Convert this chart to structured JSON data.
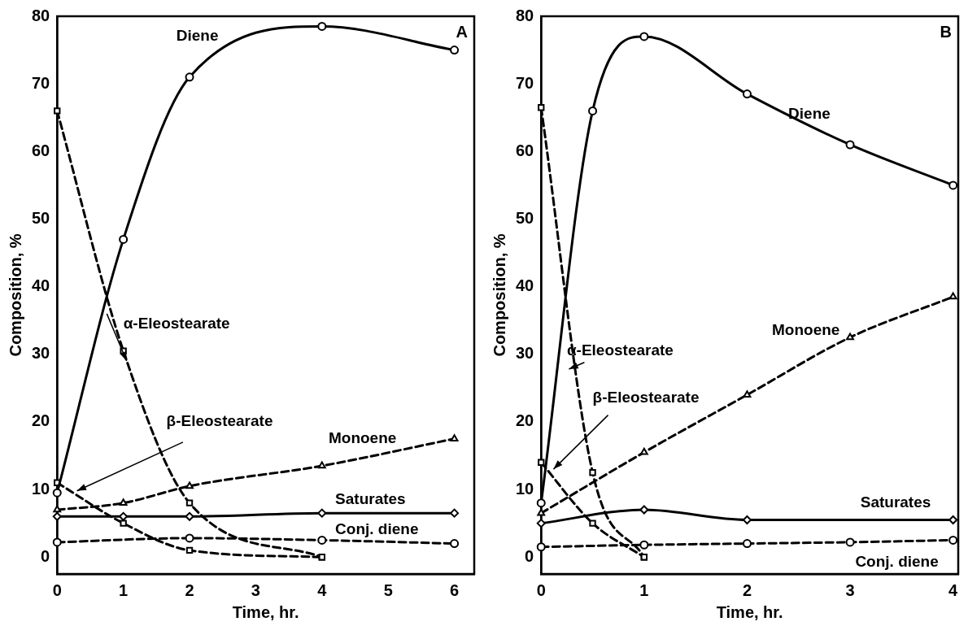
{
  "chart_data": [
    {
      "type": "line",
      "xlabel": "Time, hr.",
      "ylabel": "Composition, %",
      "annotations": [
        "A"
      ],
      "xlim": [
        0,
        6.3
      ],
      "xticks": [
        0,
        1,
        2,
        3,
        4,
        5,
        6
      ],
      "ylim": [
        -2.5,
        80
      ],
      "yticks": [
        0,
        10,
        20,
        30,
        40,
        50,
        60,
        70,
        80
      ],
      "grid": false,
      "legend": false,
      "series": [
        {
          "name": "Diene",
          "color": "#000000",
          "x": [
            0,
            1,
            2,
            4,
            6
          ],
          "values": [
            9.5,
            47,
            71,
            78.5,
            75
          ],
          "marker": "circle",
          "line_style": "solid"
        },
        {
          "name": "α-Eleostearate",
          "color": "#000000",
          "x": [
            0,
            1,
            2,
            4
          ],
          "values": [
            66,
            30.5,
            8,
            0
          ],
          "marker": "square",
          "line_style": "dashed"
        },
        {
          "name": "β-Eleostearate",
          "color": "#000000",
          "x": [
            0,
            1,
            2,
            4
          ],
          "values": [
            11,
            5,
            1,
            0
          ],
          "marker": "square",
          "line_style": "dashed"
        },
        {
          "name": "Monoene",
          "color": "#000000",
          "x": [
            0,
            1,
            2,
            4,
            6
          ],
          "values": [
            7,
            8,
            10.5,
            13.5,
            17.5
          ],
          "marker": "triangle",
          "line_style": "dashed"
        },
        {
          "name": "Saturates",
          "color": "#000000",
          "x": [
            0,
            1,
            2,
            4,
            6
          ],
          "values": [
            6,
            6,
            6,
            6.5,
            6.5
          ],
          "marker": "diamond",
          "line_style": "solid"
        },
        {
          "name": "Conj. diene",
          "color": "#000000",
          "x": [
            0,
            2,
            4,
            6
          ],
          "values": [
            2.2,
            2.8,
            2.5,
            2
          ],
          "marker": "circle",
          "line_style": "dashed"
        }
      ]
    },
    {
      "type": "line",
      "xlabel": "Time, hr.",
      "ylabel": "Composition, %",
      "annotations": [
        "B"
      ],
      "xlim": [
        0,
        4.05
      ],
      "xticks": [
        0,
        1,
        2,
        3,
        4
      ],
      "ylim": [
        -2.5,
        80
      ],
      "yticks": [
        0,
        10,
        20,
        30,
        40,
        50,
        60,
        70,
        80
      ],
      "grid": false,
      "legend": false,
      "series": [
        {
          "name": "Diene",
          "color": "#000000",
          "x": [
            0,
            0.5,
            1,
            2,
            3,
            4
          ],
          "values": [
            8,
            66,
            77,
            68.5,
            61,
            55
          ],
          "marker": "circle",
          "line_style": "solid"
        },
        {
          "name": "α-Eleostearate",
          "color": "#000000",
          "x": [
            0,
            0.5,
            1
          ],
          "values": [
            66.5,
            12.5,
            0
          ],
          "marker": "square",
          "line_style": "dashed"
        },
        {
          "name": "β-Eleostearate",
          "color": "#000000",
          "x": [
            0,
            0.5,
            1
          ],
          "values": [
            14,
            5,
            0
          ],
          "marker": "square",
          "line_style": "dashed"
        },
        {
          "name": "Monoene",
          "color": "#000000",
          "x": [
            0,
            1,
            2,
            3,
            4
          ],
          "values": [
            6.5,
            15.5,
            24,
            32.5,
            38.5
          ],
          "marker": "triangle",
          "line_style": "dashed"
        },
        {
          "name": "Saturates",
          "color": "#000000",
          "x": [
            0,
            1,
            2,
            4
          ],
          "values": [
            5,
            7,
            5.5,
            5.5
          ],
          "marker": "diamond",
          "line_style": "solid"
        },
        {
          "name": "Conj. diene",
          "color": "#000000",
          "x": [
            0,
            1,
            2,
            3,
            4
          ],
          "values": [
            1.5,
            1.8,
            2,
            2.2,
            2.5
          ],
          "marker": "circle",
          "line_style": "dashed"
        }
      ]
    }
  ]
}
